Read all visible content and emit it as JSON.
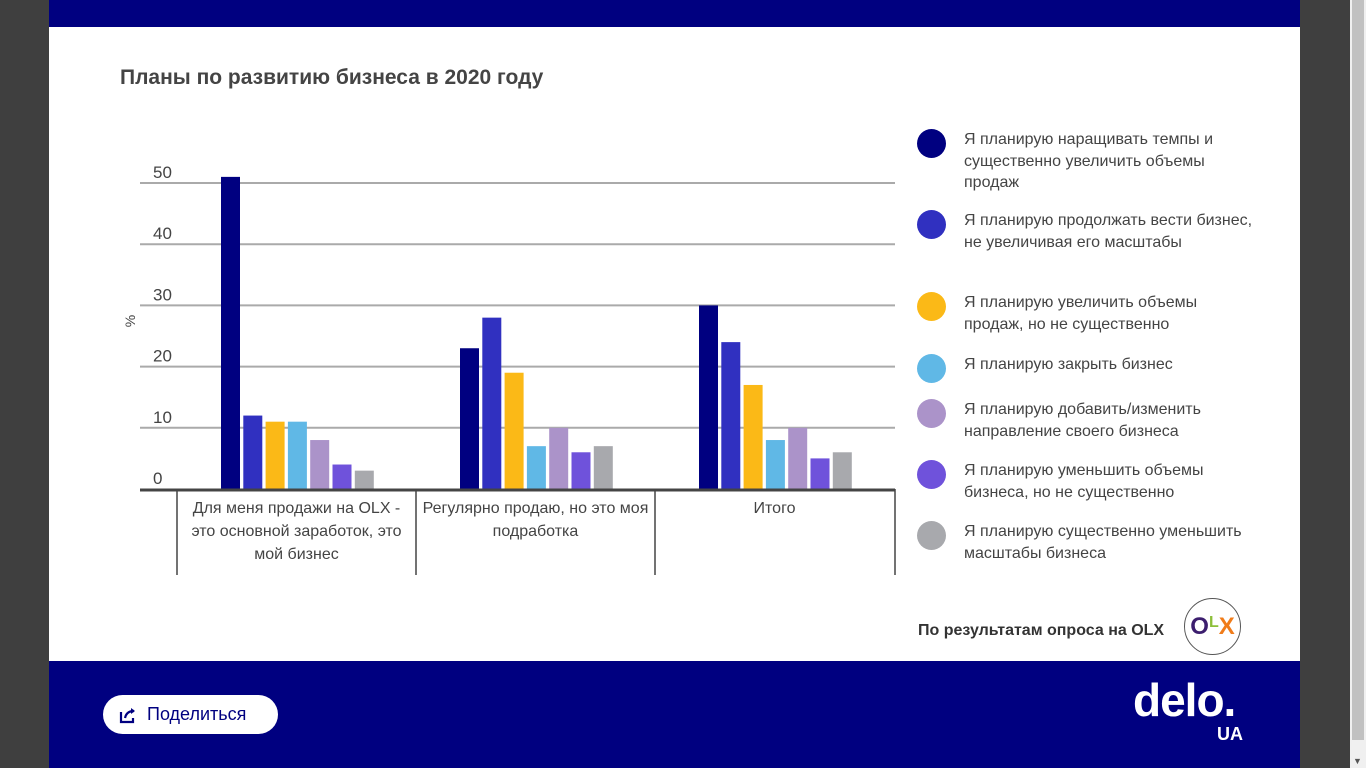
{
  "chart_data": {
    "type": "bar",
    "title": "Планы по развитию бизнеса в 2020 году",
    "ylabel": "%",
    "xlabel": "",
    "ylim": [
      0,
      50
    ],
    "yticks": [
      "0",
      "10",
      "20",
      "30",
      "40",
      "50"
    ],
    "grid": true,
    "legend_position": "right",
    "categories": [
      "Для меня продажи на OLX - это основной заработок, это мой бизнес",
      "Регулярно продаю, но это моя подработка",
      "Итого"
    ],
    "series": [
      {
        "name": "Я планирую наращивать темпы и существенно увеличить объемы продаж",
        "color": "#000080",
        "values": [
          51,
          23,
          30
        ]
      },
      {
        "name": "Я планирую продолжать вести бизнес, не увеличивая его масштабы",
        "color": "#3030c0",
        "values": [
          12,
          28,
          24
        ]
      },
      {
        "name": "Я планирую увеличить объемы продаж, но не существенно",
        "color": "#fbb917",
        "values": [
          11,
          19,
          17
        ]
      },
      {
        "name": "Я планирую закрыть бизнес",
        "color": "#60b8e6",
        "values": [
          11,
          7,
          8
        ]
      },
      {
        "name": "Я планирую добавить/изменить направление своего бизнеса",
        "color": "#ab93c9",
        "values": [
          8,
          10,
          10
        ]
      },
      {
        "name": "Я планирую уменьшить объемы бизнеса, но не существенно",
        "color": "#6f52db",
        "values": [
          4,
          6,
          5
        ]
      },
      {
        "name": "Я планирую существенно уменьшить масштабы бизнеса",
        "color": "#a8a9ad",
        "values": [
          3,
          7,
          6
        ]
      }
    ]
  },
  "source": "По результатам опроса на OLX",
  "olx_logo": "OLX",
  "footer": {
    "share_label": "Поделиться",
    "brand": "delo.",
    "brand_sub": "UA"
  }
}
